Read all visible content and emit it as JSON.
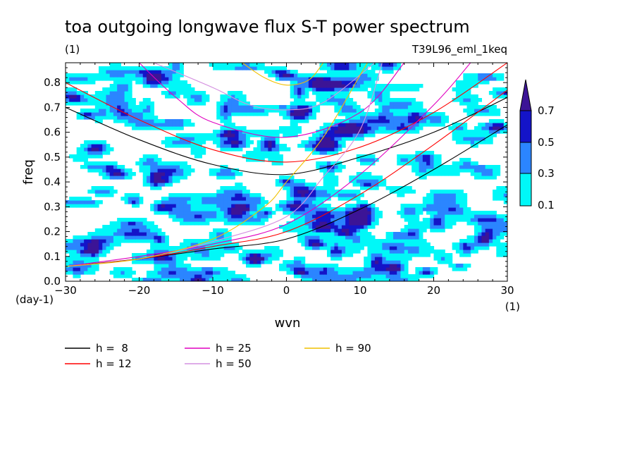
{
  "title": "toa outgoing longwave flux S-T power spectrum",
  "units_label": "(1)",
  "run_label": "T39L96_eml_1keq",
  "chart_data": {
    "type": "contour",
    "xlabel": "wvn",
    "ylabel": "freq",
    "x_units": "(1)",
    "y_units": "(day-1)",
    "xlim": [
      -30,
      30
    ],
    "ylim": [
      0,
      0.88
    ],
    "x_ticks": [
      -30,
      -20,
      -10,
      0,
      10,
      20,
      30
    ],
    "x_tick_labels": [
      "-30",
      "-20",
      "-10",
      "0",
      "10",
      "20",
      "30"
    ],
    "y_ticks": [
      0.0,
      0.1,
      0.2,
      0.3,
      0.4,
      0.5,
      0.6,
      0.7,
      0.8
    ],
    "y_tick_labels": [
      "0.0",
      "0.1",
      "0.2",
      "0.3",
      "0.4",
      "0.5",
      "0.6",
      "0.7",
      "0.8"
    ],
    "contour_levels": [
      0.1,
      0.3,
      0.5,
      0.7
    ],
    "colorbar_labels": [
      "0.7",
      "0.5",
      "0.3",
      "0.1"
    ],
    "colors": {
      "level_0_1": "#00f8f8",
      "level_0_3": "#2b85ff",
      "level_0_5": "#1414c8",
      "level_0_7": "#3c1496"
    },
    "notable_peaks": [
      {
        "x": 0,
        "y": 0.83,
        "level": 0.5
      },
      {
        "x": -4,
        "y": 0.09,
        "level": 0.5
      },
      {
        "x": 2,
        "y": 0.04,
        "level": 0.5
      },
      {
        "x": 5,
        "y": 0.22,
        "level": 0.5
      },
      {
        "x": 4,
        "y": 0.15,
        "level": 0.5
      },
      {
        "x": 8,
        "y": 0.2,
        "level": 0.5
      },
      {
        "x": -17,
        "y": 0.3,
        "level": 0.3
      },
      {
        "x": -23,
        "y": 0.43,
        "level": 0.3
      },
      {
        "x": 0,
        "y": 0.4,
        "level": 0.3
      },
      {
        "x": -27,
        "y": 0.67,
        "level": 0.3
      },
      {
        "x": 19,
        "y": 0.04,
        "level": 0.3
      }
    ],
    "dispersion_curves": [
      {
        "label": "h =  8",
        "h": 8,
        "color": "#000000",
        "kelvin": [
          [
            -30,
            0.06
          ],
          [
            -20,
            0.09
          ],
          [
            -10,
            0.13
          ],
          [
            0,
            0.17
          ],
          [
            10,
            0.29
          ],
          [
            20,
            0.45
          ],
          [
            30,
            0.63
          ]
        ],
        "er_ig": [
          [
            -30,
            0.7
          ],
          [
            -20,
            0.57
          ],
          [
            -10,
            0.47
          ],
          [
            0,
            0.43
          ],
          [
            10,
            0.5
          ],
          [
            20,
            0.6
          ],
          [
            30,
            0.74
          ]
        ]
      },
      {
        "label": "h = 12",
        "h": 12,
        "color": "#ff0000",
        "kelvin": [
          [
            -30,
            0.06
          ],
          [
            -20,
            0.09
          ],
          [
            -10,
            0.14
          ],
          [
            0,
            0.2
          ],
          [
            10,
            0.35
          ],
          [
            20,
            0.55
          ],
          [
            30,
            0.77
          ]
        ],
        "er_ig": [
          [
            -30,
            0.8
          ],
          [
            -20,
            0.65
          ],
          [
            -10,
            0.53
          ],
          [
            0,
            0.48
          ],
          [
            10,
            0.54
          ],
          [
            20,
            0.68
          ],
          [
            30,
            0.88
          ]
        ]
      },
      {
        "label": "h = 25",
        "h": 25,
        "color": "#e000c0",
        "kelvin": [
          [
            -30,
            0.06
          ],
          [
            -20,
            0.1
          ],
          [
            -10,
            0.15
          ],
          [
            0,
            0.23
          ],
          [
            10,
            0.43
          ],
          [
            20,
            0.71
          ],
          [
            25,
            0.88
          ]
        ],
        "er_ig": [
          [
            -20,
            0.88
          ],
          [
            -15,
            0.74
          ],
          [
            -10,
            0.64
          ],
          [
            0,
            0.58
          ],
          [
            10,
            0.68
          ],
          [
            16,
            0.88
          ]
        ]
      },
      {
        "label": "h = 50",
        "h": 50,
        "color": "#d490e0",
        "kelvin": [
          [
            -30,
            0.06
          ],
          [
            -20,
            0.09
          ],
          [
            -10,
            0.16
          ],
          [
            0,
            0.26
          ],
          [
            5,
            0.42
          ],
          [
            10,
            0.61
          ],
          [
            13,
            0.88
          ]
        ],
        "er_ig": [
          [
            -18,
            0.88
          ],
          [
            -10,
            0.78
          ],
          [
            -5,
            0.71
          ],
          [
            0,
            0.69
          ],
          [
            5,
            0.72
          ],
          [
            12,
            0.88
          ]
        ]
      },
      {
        "label": "h = 90",
        "h": 90,
        "color": "#f0c000",
        "kelvin": [
          [
            -30,
            0.06
          ],
          [
            -20,
            0.09
          ],
          [
            -10,
            0.17
          ],
          [
            -3,
            0.3
          ],
          [
            0,
            0.4
          ],
          [
            5,
            0.58
          ],
          [
            10,
            0.83
          ],
          [
            11,
            0.88
          ]
        ],
        "er_ig": [
          [
            -6,
            0.88
          ],
          [
            -3,
            0.82
          ],
          [
            0,
            0.79
          ],
          [
            3,
            0.81
          ],
          [
            5,
            0.88
          ]
        ]
      }
    ],
    "legend": [
      {
        "label": "h =  8",
        "color": "#000000"
      },
      {
        "label": "h = 25",
        "color": "#e000c0"
      },
      {
        "label": "h = 90",
        "color": "#f0c000"
      },
      {
        "label": "h = 12",
        "color": "#ff0000"
      },
      {
        "label": "h = 50",
        "color": "#d490e0"
      }
    ]
  }
}
